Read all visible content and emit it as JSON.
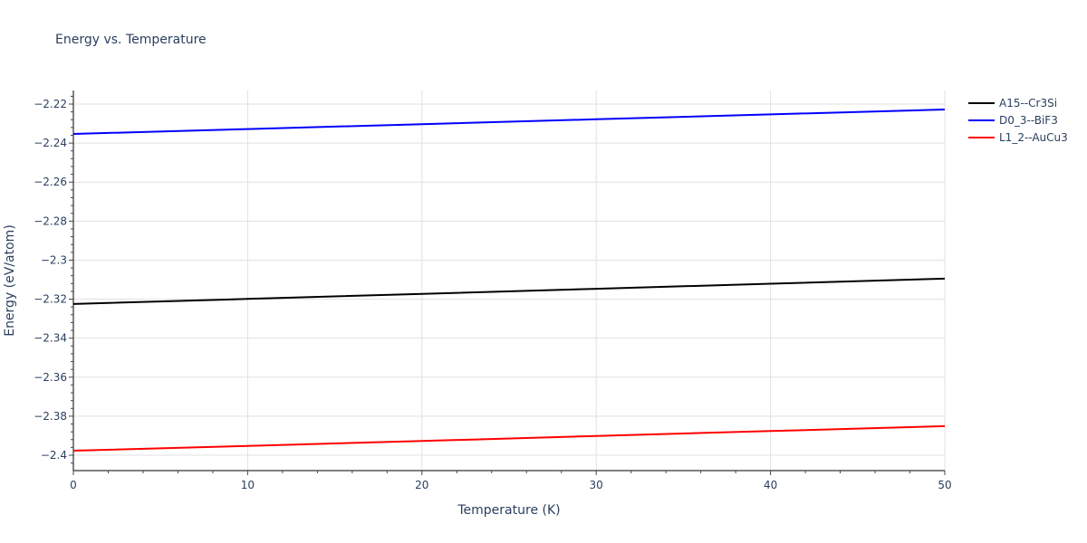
{
  "title": "Energy vs. Temperature",
  "chart_data": {
    "type": "line",
    "title": "Energy vs. Temperature",
    "xlabel": "Temperature (K)",
    "ylabel": "Energy (eV/atom)",
    "xlim": [
      0,
      50
    ],
    "ylim": [
      -2.408,
      -2.213
    ],
    "x_ticks": [
      0,
      10,
      20,
      30,
      40,
      50
    ],
    "y_ticks": [
      -2.22,
      -2.24,
      -2.26,
      -2.28,
      -2.3,
      -2.32,
      -2.34,
      -2.36,
      -2.38,
      -2.4
    ],
    "x_tick_labels": [
      "0",
      "10",
      "20",
      "30",
      "40",
      "50"
    ],
    "y_tick_labels": [
      "−2.22",
      "−2.24",
      "−2.26",
      "−2.28",
      "−2.3",
      "−2.32",
      "−2.34",
      "−2.36",
      "−2.38",
      "−2.4"
    ],
    "grid": true,
    "legend_position": "top-right outside",
    "x": [
      0,
      10,
      20,
      30,
      40,
      50
    ],
    "series": [
      {
        "name": "A15--Cr3Si",
        "color": "#000000",
        "values": [
          -2.3225,
          -2.3199,
          -2.3173,
          -2.3147,
          -2.3121,
          -2.3095
        ]
      },
      {
        "name": "D0_3--BiF3",
        "color": "#0000ff",
        "values": [
          -2.2353,
          -2.2328,
          -2.2303,
          -2.2278,
          -2.2253,
          -2.2228
        ]
      },
      {
        "name": "L1_2--AuCu3",
        "color": "#ff0000",
        "values": [
          -2.3977,
          -2.3952,
          -2.3927,
          -2.3901,
          -2.3876,
          -2.3851
        ]
      }
    ]
  }
}
